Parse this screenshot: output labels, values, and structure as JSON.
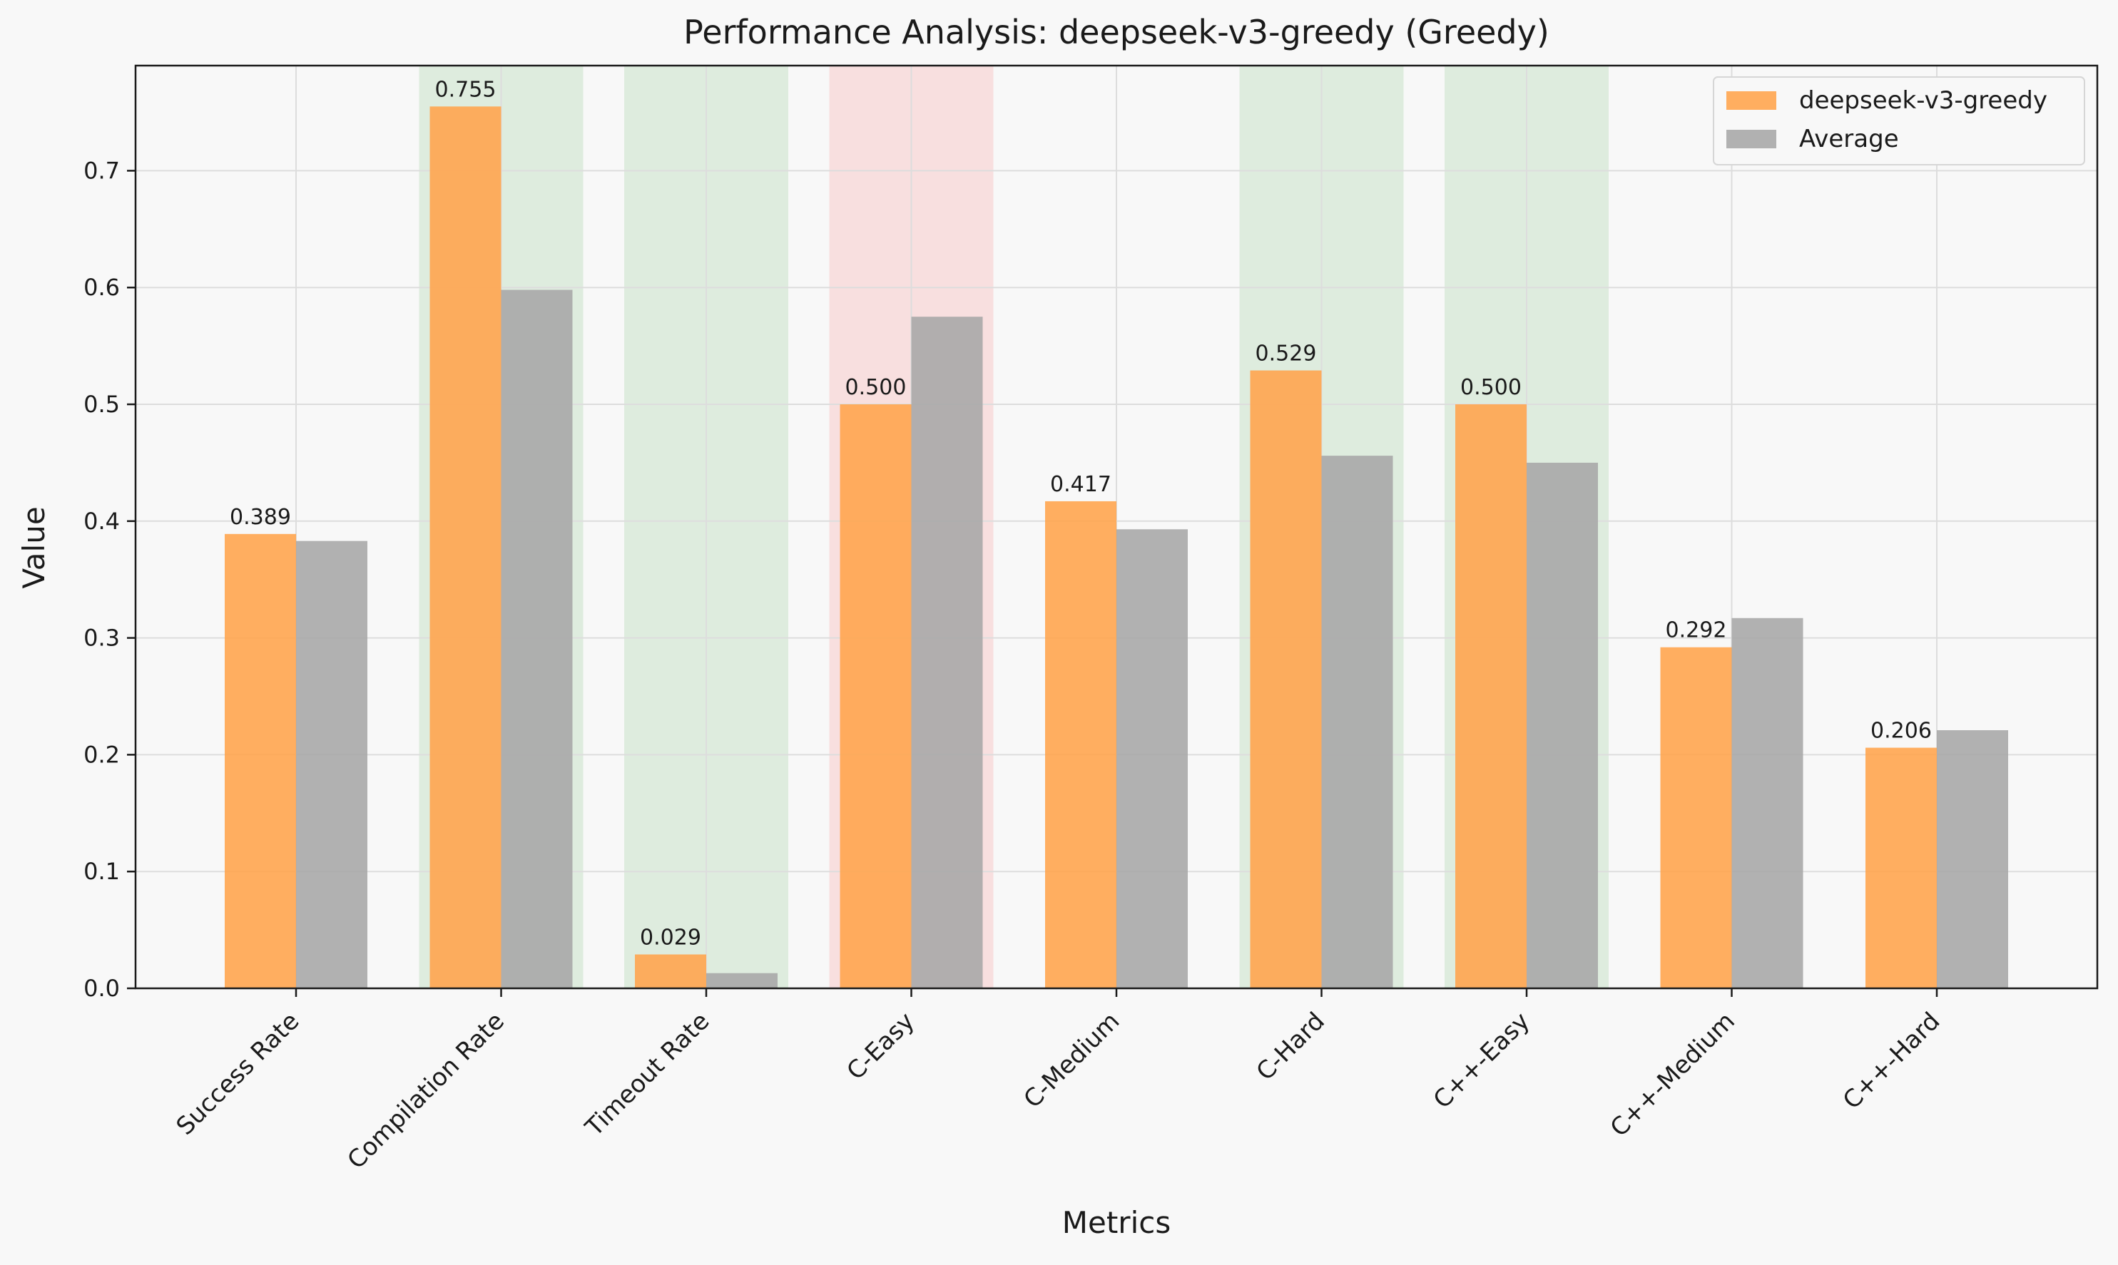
{
  "chart_data": {
    "type": "bar",
    "title": "Performance Analysis: deepseek-v3-greedy (Greedy)",
    "xlabel": "Metrics",
    "ylabel": "Value",
    "ylim": [
      0,
      0.79
    ],
    "yticks": [
      "0.0",
      "0.1",
      "0.2",
      "0.3",
      "0.4",
      "0.5",
      "0.6",
      "0.7"
    ],
    "grid": true,
    "legend_position": "top-right",
    "categories": [
      "Success Rate",
      "Compilation Rate",
      "Timeout Rate",
      "C-Easy",
      "C-Medium",
      "C-Hard",
      "C++-Easy",
      "C++-Medium",
      "C++-Hard"
    ],
    "highlight": [
      "none",
      "better",
      "better",
      "worse",
      "none",
      "better",
      "better",
      "none",
      "none"
    ],
    "series": [
      {
        "name": "deepseek-v3-greedy",
        "values": [
          0.389,
          0.755,
          0.029,
          0.5,
          0.417,
          0.529,
          0.5,
          0.292,
          0.206
        ],
        "labels": [
          "0.389",
          "0.755",
          "0.029",
          "0.500",
          "0.417",
          "0.529",
          "0.500",
          "0.292",
          "0.206"
        ],
        "color": "#ffa54f"
      },
      {
        "name": "Average",
        "values": [
          0.383,
          0.598,
          0.013,
          0.575,
          0.393,
          0.456,
          0.45,
          0.317,
          0.221
        ],
        "color": "#a9a9a9"
      }
    ],
    "colors": {
      "better_highlight": "#c8e2c8",
      "worse_highlight": "#f8cbcb",
      "background": "#f8f8f8",
      "grid": "#dddddd",
      "axis": "#1a1a1a"
    }
  }
}
